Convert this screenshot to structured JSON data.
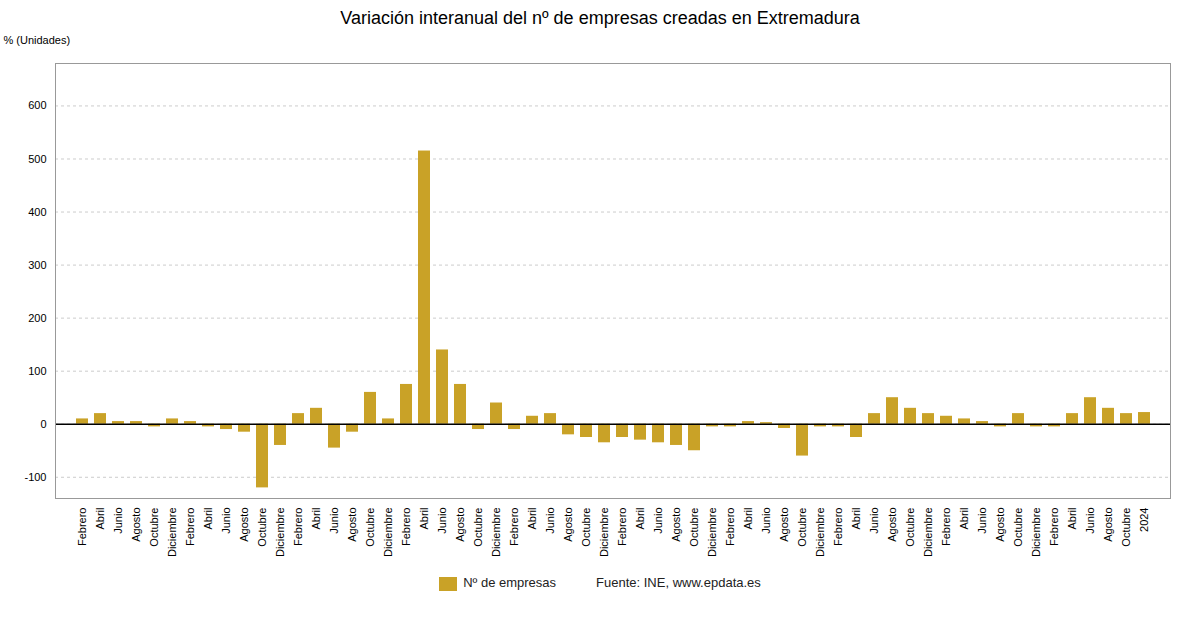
{
  "chart_data": {
    "type": "bar",
    "title": "Variación interanual del nº de empresas creadas en Extremadura",
    "y_label": "% (Unidades)",
    "categories": [
      "Febrero",
      "Abril",
      "Junio",
      "Agosto",
      "Octubre",
      "Diciembre",
      "Febrero",
      "Abril",
      "Junio",
      "Agosto",
      "Octubre",
      "Diciembre",
      "Febrero",
      "Abril",
      "Junio",
      "Agosto",
      "Octubre",
      "Diciembre",
      "Febrero",
      "Abril",
      "Junio",
      "Agosto",
      "Octubre",
      "Diciembre",
      "Febrero",
      "Abril",
      "Junio",
      "Agosto",
      "Octubre",
      "Diciembre",
      "Febrero",
      "Abril",
      "Junio",
      "Agosto",
      "Octubre",
      "Diciembre",
      "Febrero",
      "Abril",
      "Junio",
      "Agosto",
      "Octubre",
      "Diciembre",
      "Febrero",
      "Abril",
      "Junio",
      "Agosto",
      "Octubre",
      "Diciembre",
      "Febrero",
      "Abril",
      "Junio",
      "Agosto",
      "Octubre",
      "Diciembre",
      "Febrero",
      "Abril",
      "Junio",
      "Agosto",
      "Octubre",
      "2024"
    ],
    "series": [
      {
        "name": "Nº de empresas",
        "color": "#C9A227",
        "values": [
          10,
          20,
          5,
          5,
          -5,
          10,
          5,
          -5,
          -10,
          -15,
          -120,
          -40,
          20,
          30,
          -45,
          -15,
          60,
          10,
          75,
          515,
          140,
          75,
          -10,
          40,
          -10,
          15,
          20,
          -20,
          -25,
          -35,
          -25,
          -30,
          -35,
          -40,
          -50,
          -5,
          -5,
          5,
          3,
          -8,
          -60,
          -5,
          -5,
          -25,
          20,
          50,
          30,
          20,
          15,
          10,
          5,
          -5,
          20,
          -5,
          -5,
          20,
          50,
          30,
          20,
          22
        ]
      }
    ],
    "ylim": [
      -140,
      680
    ],
    "yticks": [
      -100,
      0,
      100,
      200,
      300,
      400,
      500,
      600
    ],
    "grid": true,
    "legend": "bottom",
    "caption": "Fuente: INE, www.epdata.es"
  }
}
